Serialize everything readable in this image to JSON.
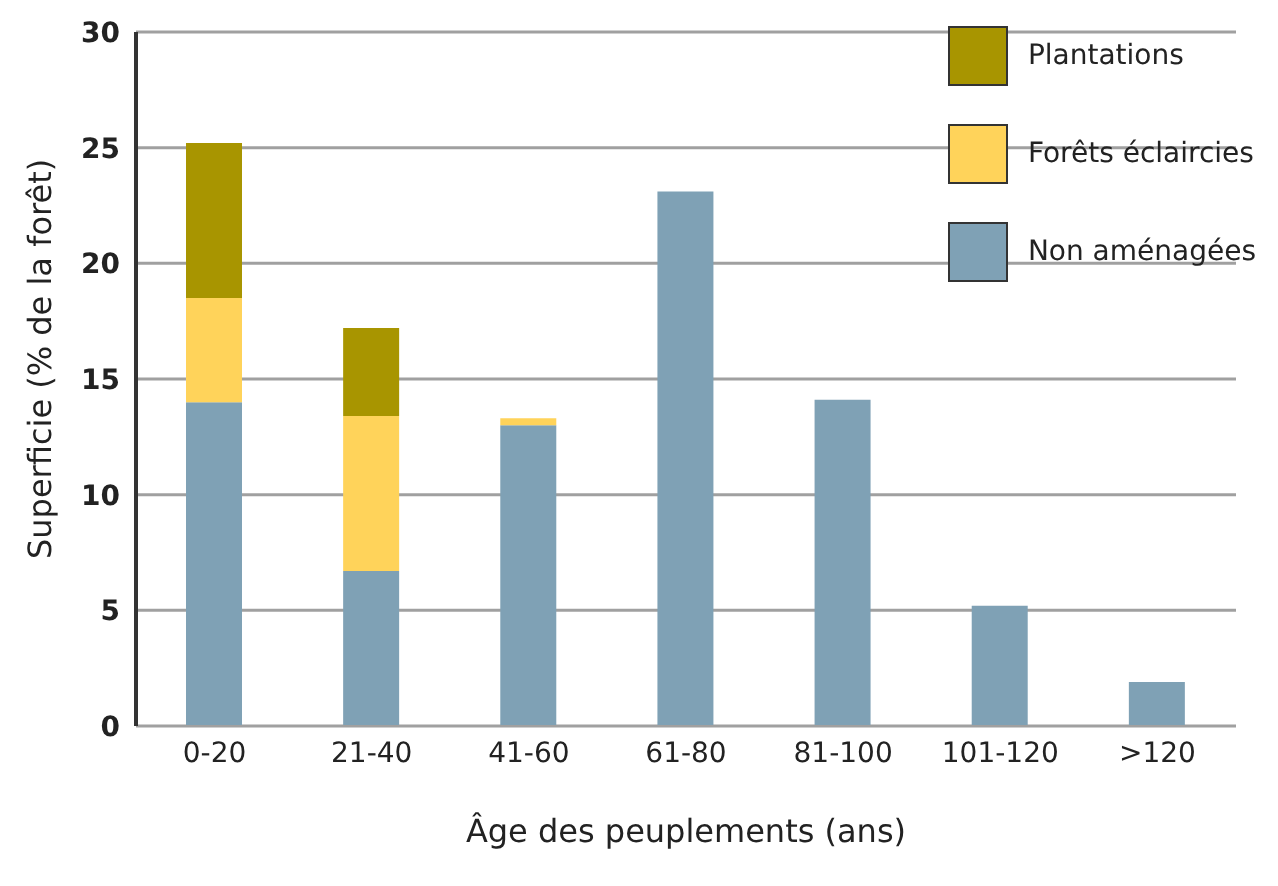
{
  "chart_data": {
    "type": "bar",
    "xlabel": "Âge des peuplements (ans)",
    "ylabel": "Superficie (% de la forêt)",
    "categories": [
      "0-20",
      "21-40",
      "41-60",
      "61-80",
      "81-100",
      "101-120",
      ">120"
    ],
    "stacked": true,
    "series": [
      {
        "name": "Non aménagées",
        "color": "#7fa1b5",
        "values": [
          14.0,
          6.7,
          13.0,
          23.1,
          14.1,
          5.2,
          1.9
        ]
      },
      {
        "name": "Forêts éclaircies",
        "color": "#ffd35a",
        "values": [
          4.5,
          6.7,
          0.3,
          null,
          null,
          null,
          null
        ]
      },
      {
        "name": "Plantations",
        "color": "#a89500",
        "values": [
          6.7,
          3.8,
          null,
          null,
          null,
          null,
          null
        ]
      }
    ],
    "ylim": [
      0,
      30
    ],
    "yticks": [
      0,
      5,
      10,
      15,
      20,
      25,
      30
    ],
    "grid": "y",
    "legend": "top right"
  }
}
